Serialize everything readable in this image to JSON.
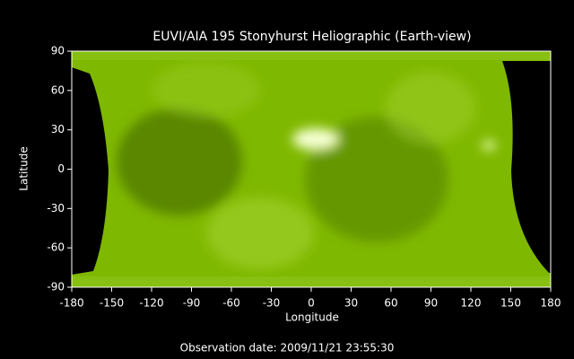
{
  "chart_data": {
    "type": "image",
    "title": "EUVI/AIA 195 Stonyhurst Heliographic (Earth-view)",
    "xlabel": "Longitude",
    "ylabel": "Latitude",
    "annotation": "Observation date: 2009/11/21 23:55:30",
    "xlim": [
      -180,
      180
    ],
    "ylim": [
      -90,
      90
    ],
    "xticks": [
      -180,
      -150,
      -120,
      -90,
      -60,
      -30,
      0,
      30,
      60,
      90,
      120,
      150,
      180
    ],
    "yticks": [
      -90,
      -60,
      -30,
      0,
      30,
      60,
      90
    ],
    "color": "#7fb800"
  }
}
